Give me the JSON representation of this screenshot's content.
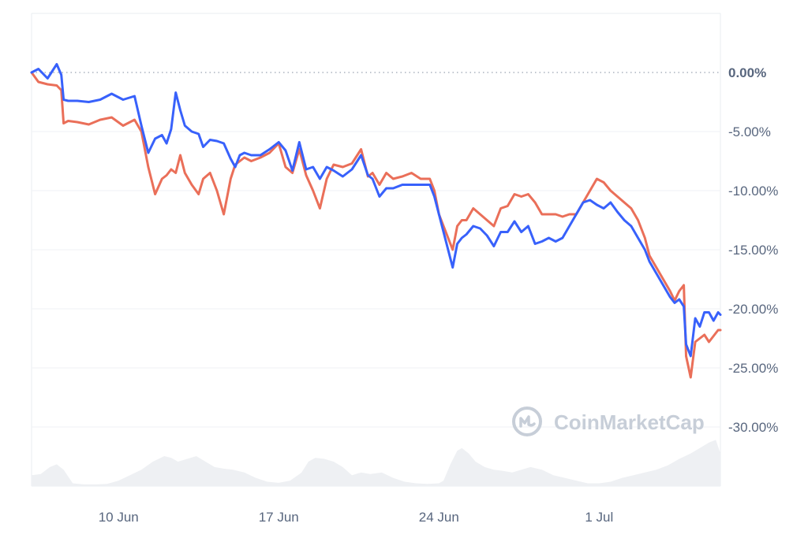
{
  "chart_data": {
    "type": "line",
    "title": "",
    "xlabel": "",
    "ylabel": "",
    "ylim": [
      -35,
      5
    ],
    "yticks": [
      {
        "value": 0,
        "label": "0.00%"
      },
      {
        "value": -5,
        "label": "-5.00%"
      },
      {
        "value": -10,
        "label": "-10.00%"
      },
      {
        "value": -15,
        "label": "-15.00%"
      },
      {
        "value": -20,
        "label": "-20.00%"
      },
      {
        "value": -25,
        "label": "-25.00%"
      },
      {
        "value": -30,
        "label": "-30.00%"
      }
    ],
    "xrange_days": [
      6.2,
      36.3
    ],
    "xticks": [
      {
        "day": 10,
        "label": "10 Jun"
      },
      {
        "day": 17,
        "label": "17 Jun"
      },
      {
        "day": 24,
        "label": "24 Jun"
      },
      {
        "day": 31,
        "label": "1 Jul"
      }
    ],
    "baseline": {
      "value": 0,
      "style": "dotted"
    },
    "grid": true,
    "series": [
      {
        "color": "#3861fb",
        "x": [
          6.2,
          6.5,
          6.9,
          7.3,
          7.5,
          7.6,
          7.8,
          8.2,
          8.7,
          9.2,
          9.7,
          10.2,
          10.7,
          11.0,
          11.3,
          11.6,
          11.9,
          12.1,
          12.3,
          12.5,
          12.7,
          12.9,
          13.2,
          13.5,
          13.7,
          14.0,
          14.3,
          14.6,
          14.9,
          15.1,
          15.3,
          15.5,
          15.8,
          16.2,
          16.6,
          17.0,
          17.3,
          17.6,
          17.9,
          18.2,
          18.5,
          18.8,
          19.1,
          19.4,
          19.8,
          20.2,
          20.6,
          20.9,
          21.1,
          21.4,
          21.7,
          22.0,
          22.4,
          22.8,
          23.2,
          23.6,
          23.8,
          24.0,
          24.2,
          24.4,
          24.6,
          24.8,
          25.0,
          25.2,
          25.5,
          25.8,
          26.1,
          26.4,
          26.7,
          27.0,
          27.3,
          27.6,
          27.9,
          28.2,
          28.5,
          28.8,
          29.1,
          29.4,
          29.7,
          30.0,
          30.3,
          30.6,
          30.9,
          31.2,
          31.5,
          31.8,
          32.1,
          32.4,
          32.7,
          33.0,
          33.2,
          33.5,
          33.8,
          34.1,
          34.3,
          34.5,
          34.7,
          34.8,
          35.0,
          35.2,
          35.4,
          35.6,
          35.8,
          36.0,
          36.2,
          36.3
        ],
        "values": [
          0,
          0.3,
          -0.5,
          0.7,
          -0.2,
          -2.3,
          -2.4,
          -2.4,
          -2.5,
          -2.3,
          -1.8,
          -2.3,
          -2.0,
          -4.5,
          -6.8,
          -5.6,
          -5.3,
          -6.0,
          -4.8,
          -1.7,
          -3.2,
          -4.5,
          -5.0,
          -5.2,
          -6.3,
          -5.7,
          -5.8,
          -6.0,
          -7.3,
          -8.0,
          -7.0,
          -6.8,
          -7.0,
          -7.0,
          -6.5,
          -5.9,
          -6.6,
          -8.3,
          -5.9,
          -8.2,
          -8.0,
          -9.0,
          -8.0,
          -8.3,
          -8.8,
          -8.2,
          -7.0,
          -8.7,
          -9.0,
          -10.5,
          -9.8,
          -9.8,
          -9.5,
          -9.5,
          -9.5,
          -9.5,
          -10.5,
          -12.0,
          -13.5,
          -15.0,
          -16.5,
          -14.5,
          -14.0,
          -13.7,
          -13.0,
          -13.2,
          -13.8,
          -14.7,
          -13.5,
          -13.5,
          -12.6,
          -13.5,
          -13.0,
          -14.5,
          -14.3,
          -14.0,
          -14.3,
          -14.0,
          -13.0,
          -12.0,
          -11.0,
          -10.8,
          -11.2,
          -11.5,
          -11.0,
          -11.8,
          -12.5,
          -13.0,
          -14.0,
          -15.0,
          -16.0,
          -17.0,
          -18.0,
          -19.0,
          -19.5,
          -19.2,
          -19.8,
          -23.0,
          -24.0,
          -20.8,
          -21.5,
          -20.3,
          -20.3,
          -21.0,
          -20.3,
          -20.5
        ]
      },
      {
        "color": "#ea6f59",
        "x": [
          6.2,
          6.5,
          6.9,
          7.3,
          7.5,
          7.6,
          7.8,
          8.2,
          8.7,
          9.2,
          9.7,
          10.2,
          10.7,
          11.0,
          11.3,
          11.6,
          11.9,
          12.1,
          12.3,
          12.5,
          12.7,
          12.9,
          13.2,
          13.5,
          13.7,
          14.0,
          14.3,
          14.6,
          14.9,
          15.1,
          15.3,
          15.5,
          15.8,
          16.2,
          16.6,
          17.0,
          17.3,
          17.6,
          17.9,
          18.2,
          18.5,
          18.8,
          19.1,
          19.4,
          19.8,
          20.2,
          20.6,
          20.9,
          21.1,
          21.4,
          21.7,
          22.0,
          22.4,
          22.8,
          23.2,
          23.6,
          23.8,
          24.0,
          24.2,
          24.4,
          24.6,
          24.8,
          25.0,
          25.2,
          25.5,
          25.8,
          26.1,
          26.4,
          26.7,
          27.0,
          27.3,
          27.6,
          27.9,
          28.2,
          28.5,
          28.8,
          29.1,
          29.4,
          29.7,
          30.0,
          30.3,
          30.6,
          30.9,
          31.2,
          31.5,
          31.8,
          32.1,
          32.4,
          32.7,
          33.0,
          33.2,
          33.5,
          33.8,
          34.1,
          34.3,
          34.5,
          34.7,
          34.8,
          35.0,
          35.2,
          35.4,
          35.6,
          35.8,
          36.0,
          36.2,
          36.3
        ],
        "values": [
          0,
          -0.8,
          -1.0,
          -1.1,
          -1.5,
          -4.3,
          -4.1,
          -4.2,
          -4.4,
          -4.0,
          -3.8,
          -4.5,
          -4.0,
          -5.0,
          -8.0,
          -10.3,
          -9.0,
          -8.7,
          -8.2,
          -8.5,
          -7.0,
          -8.5,
          -9.5,
          -10.3,
          -9.0,
          -8.5,
          -10.0,
          -12.0,
          -9.0,
          -7.8,
          -7.5,
          -7.2,
          -7.5,
          -7.2,
          -6.8,
          -6.0,
          -8.0,
          -8.5,
          -6.5,
          -8.7,
          -10.0,
          -11.5,
          -9.0,
          -7.8,
          -8.0,
          -7.7,
          -6.5,
          -8.8,
          -8.5,
          -9.5,
          -8.5,
          -9.0,
          -8.8,
          -8.5,
          -9.0,
          -9.0,
          -10.0,
          -12.0,
          -13.0,
          -14.0,
          -15.0,
          -13.0,
          -12.5,
          -12.5,
          -11.5,
          -12.0,
          -12.5,
          -13.0,
          -11.5,
          -11.3,
          -10.3,
          -10.5,
          -10.3,
          -11.0,
          -12.0,
          -12.0,
          -12.0,
          -12.2,
          -12.0,
          -12.0,
          -11.0,
          -10.0,
          -9.0,
          -9.3,
          -10.0,
          -10.5,
          -11.0,
          -11.5,
          -12.5,
          -14.0,
          -15.5,
          -16.5,
          -17.5,
          -18.5,
          -19.3,
          -18.5,
          -18.0,
          -24.0,
          -25.8,
          -22.8,
          -22.5,
          -22.2,
          -22.8,
          -22.3,
          -21.8,
          -21.8
        ]
      }
    ],
    "volume": {
      "color": "#eef0f3",
      "x": [
        6.2,
        6.6,
        7.0,
        7.3,
        7.6,
        8.0,
        8.5,
        9.0,
        9.5,
        10.0,
        10.5,
        11.0,
        11.5,
        12.0,
        12.3,
        12.6,
        13.0,
        13.4,
        13.8,
        14.2,
        14.6,
        15.0,
        15.5,
        16.0,
        16.5,
        17.0,
        17.5,
        18.0,
        18.3,
        18.6,
        19.0,
        19.4,
        19.8,
        20.2,
        20.6,
        21.0,
        21.5,
        22.0,
        22.5,
        23.0,
        23.5,
        24.0,
        24.2,
        24.5,
        24.8,
        25.0,
        25.3,
        25.6,
        26.0,
        26.4,
        26.8,
        27.2,
        27.6,
        28.0,
        28.5,
        29.0,
        29.5,
        30.0,
        30.5,
        31.0,
        31.5,
        32.0,
        32.5,
        33.0,
        33.5,
        34.0,
        34.5,
        35.0,
        35.4,
        35.8,
        36.1,
        36.3
      ],
      "values": [
        0.2,
        0.22,
        0.35,
        0.4,
        0.3,
        0.05,
        0.03,
        0.03,
        0.04,
        0.1,
        0.2,
        0.3,
        0.45,
        0.55,
        0.52,
        0.45,
        0.5,
        0.55,
        0.45,
        0.35,
        0.32,
        0.3,
        0.25,
        0.15,
        0.08,
        0.06,
        0.1,
        0.25,
        0.45,
        0.52,
        0.5,
        0.45,
        0.35,
        0.2,
        0.25,
        0.22,
        0.25,
        0.15,
        0.08,
        0.05,
        0.04,
        0.05,
        0.1,
        0.4,
        0.65,
        0.7,
        0.6,
        0.45,
        0.35,
        0.3,
        0.28,
        0.25,
        0.3,
        0.35,
        0.3,
        0.2,
        0.15,
        0.1,
        0.05,
        0.05,
        0.08,
        0.15,
        0.2,
        0.25,
        0.3,
        0.38,
        0.5,
        0.6,
        0.7,
        0.8,
        0.85,
        0.6
      ]
    },
    "watermark": "CoinMarketCap"
  }
}
